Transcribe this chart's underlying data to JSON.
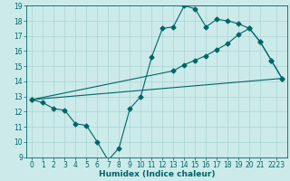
{
  "xlabel": "Humidex (Indice chaleur)",
  "bg_color": "#cceaea",
  "grid_color": "#aad4d4",
  "line_color": "#006666",
  "x_min": -0.5,
  "x_max": 23.5,
  "y_min": 9,
  "y_max": 19,
  "yticks": [
    9,
    10,
    11,
    12,
    13,
    14,
    15,
    16,
    17,
    18,
    19
  ],
  "xtick_labels": [
    "0",
    "1",
    "2",
    "3",
    "4",
    "5",
    "6",
    "7",
    "8",
    "9",
    "10",
    "11",
    "12",
    "13",
    "14",
    "15",
    "16",
    "17",
    "18",
    "19",
    "20",
    "21",
    "2223"
  ],
  "xtick_pos": [
    0,
    1,
    2,
    3,
    4,
    5,
    6,
    7,
    8,
    9,
    10,
    11,
    12,
    13,
    14,
    15,
    16,
    17,
    18,
    19,
    20,
    21,
    22.5
  ],
  "line1_x": [
    0,
    1,
    2,
    3,
    4,
    5,
    6,
    7,
    8,
    9,
    10,
    11,
    12,
    13,
    14,
    15,
    16,
    17,
    18,
    19,
    20,
    21,
    22,
    23
  ],
  "line1_y": [
    12.8,
    12.6,
    12.2,
    12.1,
    11.2,
    11.1,
    10.0,
    8.8,
    9.6,
    12.2,
    13.0,
    15.6,
    17.5,
    17.6,
    19.0,
    18.8,
    17.6,
    18.1,
    18.0,
    17.8,
    17.5,
    16.6,
    15.4,
    14.2
  ],
  "line2_x": [
    0,
    13,
    14,
    15,
    16,
    17,
    18,
    19,
    20,
    21,
    22,
    23
  ],
  "line2_y": [
    12.8,
    14.7,
    15.1,
    15.4,
    15.7,
    16.1,
    16.5,
    17.1,
    17.5,
    16.6,
    15.4,
    14.2
  ],
  "line3_x": [
    0,
    23
  ],
  "line3_y": [
    12.8,
    14.2
  ],
  "marker_size": 2.5,
  "line_width": 0.8,
  "font_size_label": 6.5,
  "font_size_tick": 5.5
}
